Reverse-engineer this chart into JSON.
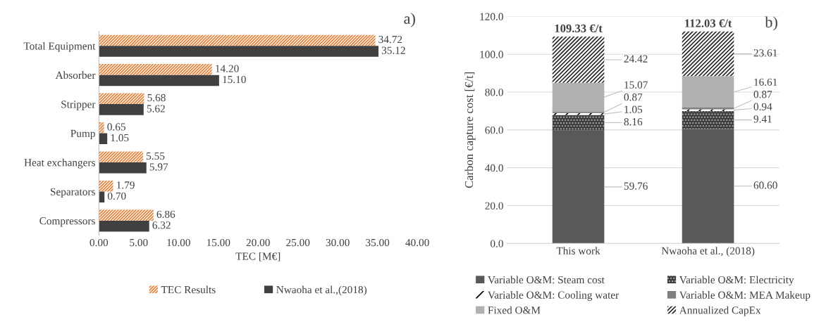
{
  "chart_data": [
    {
      "type": "bar",
      "orientation": "horizontal",
      "title": "a)",
      "xlabel": "TEC [M€]",
      "categories": [
        "Total Equipment",
        "Absorber",
        "Stripper",
        "Pump",
        "Heat exchangers",
        "Separators",
        "Compressors"
      ],
      "series": [
        {
          "name": "TEC Results",
          "color": "#ed7d31",
          "values": [
            34.72,
            14.2,
            5.68,
            0.65,
            5.55,
            1.79,
            6.86
          ],
          "value_labels": [
            "34.72",
            "14.20",
            "5.68",
            "0.65",
            "5.55",
            "1.79",
            "6.86"
          ]
        },
        {
          "name": "Nwaoha et al.,(2018)",
          "color": "#404040",
          "values": [
            35.12,
            15.1,
            5.62,
            1.05,
            5.97,
            0.7,
            6.32
          ],
          "value_labels": [
            "35.12",
            "15.10",
            "5.62",
            "1.05",
            "5.97",
            "0.70",
            "6.32"
          ]
        }
      ],
      "xlim": [
        0,
        40
      ],
      "xticks": [
        {
          "value": 0,
          "label": "0.00"
        },
        {
          "value": 5,
          "label": "5.00"
        },
        {
          "value": 10,
          "label": "10.00"
        },
        {
          "value": 15,
          "label": "15.00"
        },
        {
          "value": 20,
          "label": "20.00"
        },
        {
          "value": 25,
          "label": "25.00"
        },
        {
          "value": 30,
          "label": "30.00"
        },
        {
          "value": 35,
          "label": "35.00"
        },
        {
          "value": 40,
          "label": "40.00"
        }
      ],
      "grid": false,
      "legend": "bottom"
    },
    {
      "type": "bar",
      "stacked": true,
      "title": "b)",
      "ylabel": "Carbon capture cost [€/t]",
      "categories": [
        "This work",
        "Nwaoha et al., (2018)"
      ],
      "series": [
        {
          "name": "Variable O&M: Steam cost",
          "color": "#595959",
          "values": [
            59.76,
            60.6
          ],
          "value_labels": [
            "59.76",
            "60.60"
          ]
        },
        {
          "name": "Variable O&M: Electricity",
          "color": "#3a3a3a",
          "values": [
            8.16,
            9.41
          ],
          "value_labels": [
            "8.16",
            "9.41"
          ]
        },
        {
          "name": "Variable O&M: Cooling water",
          "color": "#000000",
          "values": [
            1.05,
            0.94
          ],
          "value_labels": [
            "1.05",
            "0.94"
          ]
        },
        {
          "name": "Variable O&M: MEA Makeup",
          "color": "#7f7f7f",
          "values": [
            0.87,
            0.87
          ],
          "value_labels": [
            "0.87",
            "0.87"
          ]
        },
        {
          "name": "Fixed O&M",
          "color": "#b0b0b0",
          "values": [
            15.07,
            16.61
          ],
          "value_labels": [
            "15.07",
            "16.61"
          ]
        },
        {
          "name": "Annualized CapEx",
          "color": "#262626",
          "values": [
            24.42,
            23.61
          ],
          "value_labels": [
            "24.42",
            "23.61"
          ]
        }
      ],
      "totals": [
        "109.33 €/t",
        "112.03 €/t"
      ],
      "ylim": [
        0,
        120
      ],
      "yticks": [
        {
          "value": 0,
          "label": "0.0"
        },
        {
          "value": 20,
          "label": "20.0"
        },
        {
          "value": 40,
          "label": "40.0"
        },
        {
          "value": 60,
          "label": "60.0"
        },
        {
          "value": 80,
          "label": "80.0"
        },
        {
          "value": 100,
          "label": "100.0"
        },
        {
          "value": 120,
          "label": "120.0"
        }
      ],
      "grid": "y",
      "legend": "bottom"
    }
  ]
}
